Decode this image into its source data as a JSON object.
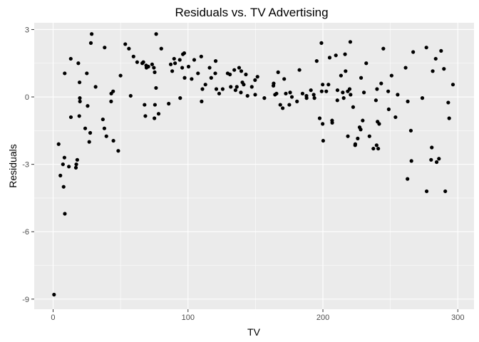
{
  "chart_data": {
    "type": "scatter",
    "title": "Residuals vs. TV Advertising",
    "xlabel": "TV",
    "ylabel": "Residuals",
    "xlim": [
      -14,
      312
    ],
    "ylim": [
      -9.45,
      3.3
    ],
    "xticks": [
      0,
      100,
      200,
      300
    ],
    "xtick_labels": [
      "0",
      "100",
      "200",
      "300"
    ],
    "xminor": [
      50,
      150,
      250
    ],
    "yticks": [
      -9,
      -6,
      -3,
      0,
      3
    ],
    "ytick_labels": [
      "-9",
      "-6",
      "-3",
      "0",
      "3"
    ],
    "yminor": [
      -7.5,
      -4.5,
      -1.5,
      1.5
    ],
    "grid": true,
    "legend": "none",
    "point_color": "#000000",
    "panel_color": "#ebebeb",
    "points": [
      [
        0.7,
        -8.8
      ],
      [
        4.1,
        -2.1
      ],
      [
        5.4,
        -3.5
      ],
      [
        7.3,
        -3.0
      ],
      [
        7.8,
        -4.0
      ],
      [
        8.6,
        1.05
      ],
      [
        8.4,
        -2.7
      ],
      [
        8.7,
        -5.2
      ],
      [
        11.7,
        -3.1
      ],
      [
        13.1,
        1.7
      ],
      [
        13.2,
        -0.9
      ],
      [
        16.9,
        -3.15
      ],
      [
        17.2,
        -3.0
      ],
      [
        17.9,
        -2.8
      ],
      [
        18.7,
        1.5
      ],
      [
        19.4,
        -0.85
      ],
      [
        19.6,
        0.65
      ],
      [
        19.9,
        -0.2
      ],
      [
        19.8,
        -0.05
      ],
      [
        23.8,
        -1.4
      ],
      [
        25.0,
        1.05
      ],
      [
        25.6,
        -0.4
      ],
      [
        26.8,
        -2.0
      ],
      [
        27.5,
        -1.6
      ],
      [
        28.0,
        2.4
      ],
      [
        28.6,
        2.8
      ],
      [
        31.5,
        0.45
      ],
      [
        36.9,
        -1.0
      ],
      [
        38.0,
        -1.4
      ],
      [
        38.2,
        2.2
      ],
      [
        39.5,
        -1.75
      ],
      [
        43.0,
        -0.2
      ],
      [
        43.1,
        0.15
      ],
      [
        44.5,
        0.25
      ],
      [
        44.7,
        -1.95
      ],
      [
        48.3,
        -2.4
      ],
      [
        50.0,
        0.95
      ],
      [
        53.5,
        2.35
      ],
      [
        56.2,
        2.15
      ],
      [
        57.5,
        0.05
      ],
      [
        59.6,
        1.8
      ],
      [
        62.3,
        1.55
      ],
      [
        66.1,
        1.5
      ],
      [
        66.9,
        1.55
      ],
      [
        67.8,
        -0.35
      ],
      [
        68.4,
        -0.85
      ],
      [
        69.0,
        1.4
      ],
      [
        69.2,
        1.3
      ],
      [
        70.6,
        1.35
      ],
      [
        73.4,
        1.45
      ],
      [
        74.7,
        1.3
      ],
      [
        75.1,
        -0.95
      ],
      [
        75.3,
        1.1
      ],
      [
        75.5,
        -0.35
      ],
      [
        76.3,
        0.4
      ],
      [
        76.4,
        2.8
      ],
      [
        78.2,
        -0.75
      ],
      [
        80.2,
        2.15
      ],
      [
        85.7,
        -0.3
      ],
      [
        87.2,
        1.45
      ],
      [
        88.3,
        1.15
      ],
      [
        89.7,
        1.7
      ],
      [
        90.4,
        1.5
      ],
      [
        93.9,
        1.65
      ],
      [
        94.2,
        -0.05
      ],
      [
        95.7,
        1.3
      ],
      [
        96.2,
        1.9
      ],
      [
        97.2,
        1.95
      ],
      [
        97.5,
        0.85
      ],
      [
        100.4,
        1.35
      ],
      [
        102.7,
        0.8
      ],
      [
        104.6,
        1.65
      ],
      [
        107.4,
        1.05
      ],
      [
        109.8,
        1.8
      ],
      [
        110.1,
        -0.2
      ],
      [
        110.7,
        0.35
      ],
      [
        112.9,
        0.55
      ],
      [
        116.0,
        1.3
      ],
      [
        117.2,
        0.85
      ],
      [
        120.2,
        1.05
      ],
      [
        120.5,
        1.6
      ],
      [
        121.0,
        0.35
      ],
      [
        123.1,
        0.15
      ],
      [
        125.7,
        0.35
      ],
      [
        129.4,
        1.05
      ],
      [
        131.1,
        1.0
      ],
      [
        131.7,
        0.45
      ],
      [
        134.3,
        1.2
      ],
      [
        135.2,
        0.3
      ],
      [
        136.2,
        0.45
      ],
      [
        137.9,
        1.3
      ],
      [
        139.2,
        0.2
      ],
      [
        139.5,
        1.15
      ],
      [
        140.3,
        0.65
      ],
      [
        141.3,
        0.55
      ],
      [
        142.9,
        1.0
      ],
      [
        144.1,
        0.05
      ],
      [
        147.3,
        0.45
      ],
      [
        149.7,
        0.75
      ],
      [
        149.8,
        0.1
      ],
      [
        151.5,
        0.9
      ],
      [
        156.6,
        -0.05
      ],
      [
        163.5,
        0.6
      ],
      [
        163.3,
        0.5
      ],
      [
        164.5,
        0.1
      ],
      [
        165.6,
        0.15
      ],
      [
        166.8,
        1.1
      ],
      [
        168.4,
        -0.35
      ],
      [
        170.2,
        -0.5
      ],
      [
        171.3,
        0.8
      ],
      [
        172.5,
        0.15
      ],
      [
        175.1,
        -0.35
      ],
      [
        175.7,
        0.2
      ],
      [
        177.0,
        0.0
      ],
      [
        180.8,
        -0.2
      ],
      [
        182.6,
        1.2
      ],
      [
        184.9,
        0.15
      ],
      [
        187.8,
        0.05
      ],
      [
        187.9,
        -0.05
      ],
      [
        191.1,
        0.3
      ],
      [
        193.2,
        0.1
      ],
      [
        193.7,
        -0.05
      ],
      [
        195.4,
        1.6
      ],
      [
        197.6,
        -0.95
      ],
      [
        198.9,
        2.4
      ],
      [
        199.1,
        0.25
      ],
      [
        199.8,
        0.55
      ],
      [
        199.8,
        -1.2
      ],
      [
        200.2,
        -1.95
      ],
      [
        202.5,
        0.25
      ],
      [
        204.1,
        0.55
      ],
      [
        205.0,
        1.75
      ],
      [
        206.8,
        -1.05
      ],
      [
        206.9,
        -1.15
      ],
      [
        209.6,
        1.85
      ],
      [
        210.8,
        0.3
      ],
      [
        210.7,
        -0.15
      ],
      [
        213.4,
        0.95
      ],
      [
        214.7,
        0.2
      ],
      [
        215.4,
        -0.05
      ],
      [
        216.4,
        1.9
      ],
      [
        216.8,
        1.15
      ],
      [
        218.4,
        0.25
      ],
      [
        218.5,
        -1.75
      ],
      [
        219.8,
        0.35
      ],
      [
        220.3,
        2.45
      ],
      [
        220.5,
        0.1
      ],
      [
        222.4,
        -0.45
      ],
      [
        223.9,
        -2.15
      ],
      [
        224.0,
        -2.1
      ],
      [
        225.8,
        -1.85
      ],
      [
        227.2,
        -1.35
      ],
      [
        228.0,
        -1.45
      ],
      [
        228.3,
        0.85
      ],
      [
        229.5,
        -1.05
      ],
      [
        230.4,
        0.2
      ],
      [
        232.1,
        1.5
      ],
      [
        234.5,
        -1.75
      ],
      [
        237.4,
        -2.3
      ],
      [
        239.3,
        -0.15
      ],
      [
        239.8,
        -2.15
      ],
      [
        240.1,
        0.35
      ],
      [
        240.5,
        -1.1
      ],
      [
        241.0,
        -2.3
      ],
      [
        241.7,
        -1.2
      ],
      [
        243.2,
        0.6
      ],
      [
        244.8,
        2.15
      ],
      [
        248.4,
        0.25
      ],
      [
        248.8,
        -0.55
      ],
      [
        250.9,
        0.95
      ],
      [
        253.8,
        -0.9
      ],
      [
        255.4,
        0.1
      ],
      [
        261.3,
        1.3
      ],
      [
        262.7,
        -3.65
      ],
      [
        262.9,
        -0.2
      ],
      [
        265.2,
        -1.5
      ],
      [
        265.6,
        -2.85
      ],
      [
        266.9,
        2.0
      ],
      [
        273.7,
        -0.05
      ],
      [
        276.7,
        2.2
      ],
      [
        276.9,
        -4.2
      ],
      [
        280.2,
        -2.8
      ],
      [
        280.7,
        -2.25
      ],
      [
        281.4,
        1.15
      ],
      [
        283.6,
        1.7
      ],
      [
        284.3,
        -2.9
      ],
      [
        286.0,
        -2.75
      ],
      [
        287.6,
        2.05
      ],
      [
        289.7,
        1.25
      ],
      [
        290.7,
        -4.2
      ],
      [
        292.9,
        -0.25
      ],
      [
        293.6,
        -0.95
      ],
      [
        296.4,
        0.55
      ]
    ]
  }
}
